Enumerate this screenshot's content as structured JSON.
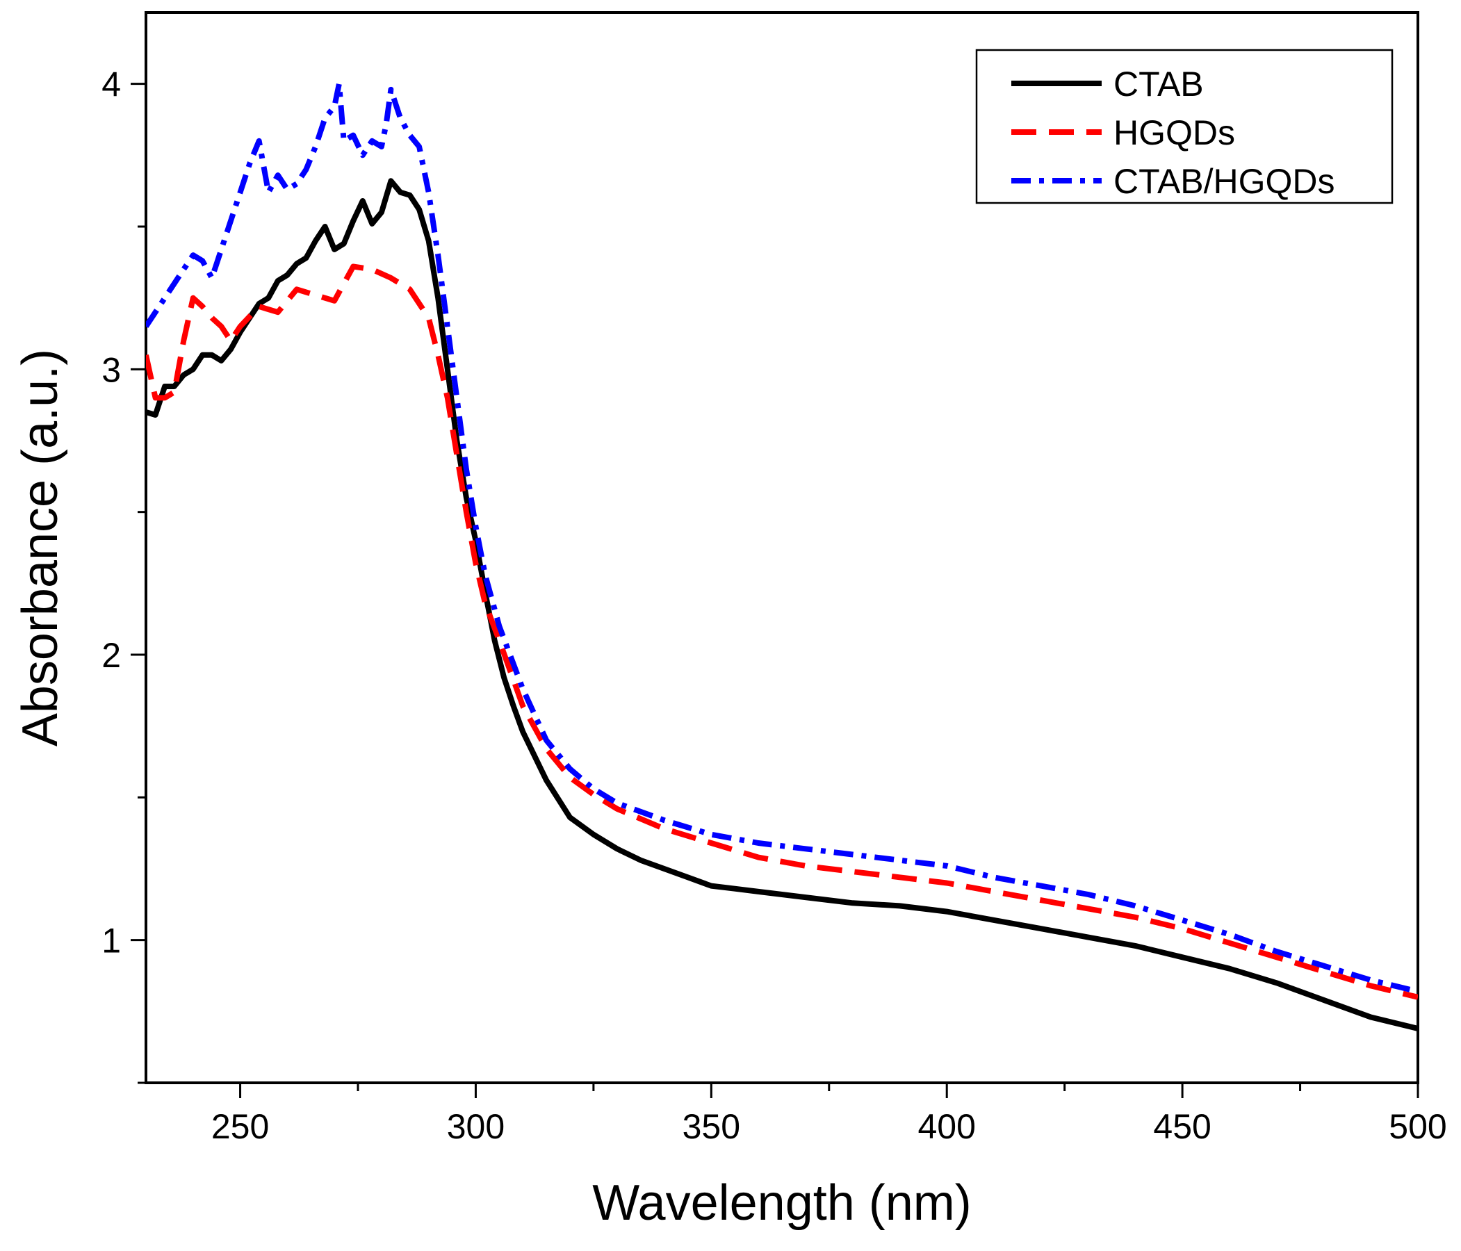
{
  "chart_data": {
    "type": "line",
    "title": "",
    "xlabel": "Wavelength (nm)",
    "ylabel": "Absorbance (a.u.)",
    "xlim": [
      230,
      500
    ],
    "ylim": [
      0.5,
      4.25
    ],
    "x_ticks": [
      250,
      300,
      350,
      400,
      450,
      500
    ],
    "y_ticks": [
      1,
      2,
      3,
      4
    ],
    "x_tick_labels": [
      "250",
      "300",
      "350",
      "400",
      "450",
      "500"
    ],
    "y_tick_labels": [
      "1",
      "2",
      "3",
      "4"
    ],
    "grid": false,
    "legend_position": "top-right",
    "series": [
      {
        "name": "CTAB",
        "color": "#000000",
        "style": "solid",
        "x": [
          230,
          232,
          234,
          236,
          238,
          240,
          242,
          244,
          246,
          248,
          250,
          252,
          254,
          256,
          258,
          260,
          262,
          264,
          266,
          268,
          270,
          272,
          274,
          276,
          278,
          280,
          282,
          284,
          286,
          288,
          290,
          292,
          294,
          296,
          298,
          300,
          302,
          304,
          306,
          308,
          310,
          315,
          320,
          325,
          330,
          335,
          340,
          345,
          350,
          355,
          360,
          370,
          380,
          390,
          400,
          410,
          420,
          430,
          440,
          450,
          460,
          470,
          480,
          490,
          500
        ],
        "y": [
          2.85,
          2.84,
          2.94,
          2.94,
          2.98,
          3.0,
          3.05,
          3.05,
          3.03,
          3.07,
          3.13,
          3.18,
          3.23,
          3.25,
          3.31,
          3.33,
          3.37,
          3.39,
          3.45,
          3.5,
          3.42,
          3.44,
          3.52,
          3.59,
          3.51,
          3.55,
          3.66,
          3.62,
          3.61,
          3.56,
          3.45,
          3.25,
          3.0,
          2.75,
          2.55,
          2.4,
          2.22,
          2.05,
          1.92,
          1.82,
          1.73,
          1.56,
          1.43,
          1.37,
          1.32,
          1.28,
          1.25,
          1.22,
          1.19,
          1.18,
          1.17,
          1.15,
          1.13,
          1.12,
          1.1,
          1.07,
          1.04,
          1.01,
          0.98,
          0.94,
          0.9,
          0.85,
          0.79,
          0.73,
          0.69
        ]
      },
      {
        "name": "HGQDs",
        "color": "#ff0000",
        "style": "dashed",
        "x": [
          230,
          232,
          234,
          236,
          238,
          240,
          242,
          244,
          246,
          248,
          250,
          254,
          258,
          262,
          266,
          270,
          274,
          278,
          282,
          286,
          290,
          292,
          294,
          296,
          298,
          300,
          302,
          305,
          310,
          315,
          320,
          325,
          330,
          340,
          350,
          360,
          370,
          380,
          390,
          400,
          410,
          420,
          430,
          440,
          450,
          460,
          470,
          480,
          490,
          500
        ],
        "y": [
          3.05,
          2.9,
          2.9,
          2.92,
          3.1,
          3.25,
          3.22,
          3.18,
          3.15,
          3.1,
          3.15,
          3.22,
          3.2,
          3.28,
          3.26,
          3.24,
          3.36,
          3.35,
          3.32,
          3.28,
          3.18,
          3.05,
          2.9,
          2.7,
          2.5,
          2.32,
          2.18,
          2.05,
          1.82,
          1.67,
          1.57,
          1.51,
          1.46,
          1.39,
          1.34,
          1.29,
          1.26,
          1.24,
          1.22,
          1.2,
          1.17,
          1.14,
          1.11,
          1.08,
          1.04,
          0.99,
          0.94,
          0.89,
          0.84,
          0.8
        ]
      },
      {
        "name": "CTAB/HGQDs",
        "color": "#0000ff",
        "style": "dashdot",
        "x": [
          230,
          232,
          234,
          236,
          238,
          240,
          242,
          244,
          246,
          248,
          250,
          252,
          254,
          256,
          258,
          260,
          262,
          264,
          266,
          268,
          270,
          271,
          272,
          274,
          276,
          278,
          280,
          281,
          282,
          284,
          286,
          288,
          290,
          292,
          294,
          296,
          298,
          300,
          302,
          305,
          310,
          315,
          320,
          325,
          330,
          340,
          350,
          360,
          370,
          380,
          390,
          400,
          410,
          420,
          430,
          440,
          450,
          460,
          470,
          480,
          490,
          500
        ],
        "y": [
          3.15,
          3.2,
          3.25,
          3.3,
          3.35,
          3.4,
          3.38,
          3.32,
          3.42,
          3.52,
          3.62,
          3.72,
          3.8,
          3.62,
          3.68,
          3.63,
          3.65,
          3.7,
          3.78,
          3.88,
          3.92,
          4.0,
          3.8,
          3.82,
          3.75,
          3.8,
          3.78,
          3.86,
          3.98,
          3.88,
          3.82,
          3.78,
          3.62,
          3.4,
          3.15,
          2.9,
          2.65,
          2.45,
          2.28,
          2.1,
          1.88,
          1.7,
          1.6,
          1.53,
          1.48,
          1.42,
          1.37,
          1.34,
          1.32,
          1.3,
          1.28,
          1.26,
          1.22,
          1.19,
          1.16,
          1.12,
          1.07,
          1.02,
          0.96,
          0.91,
          0.86,
          0.82
        ]
      }
    ]
  }
}
